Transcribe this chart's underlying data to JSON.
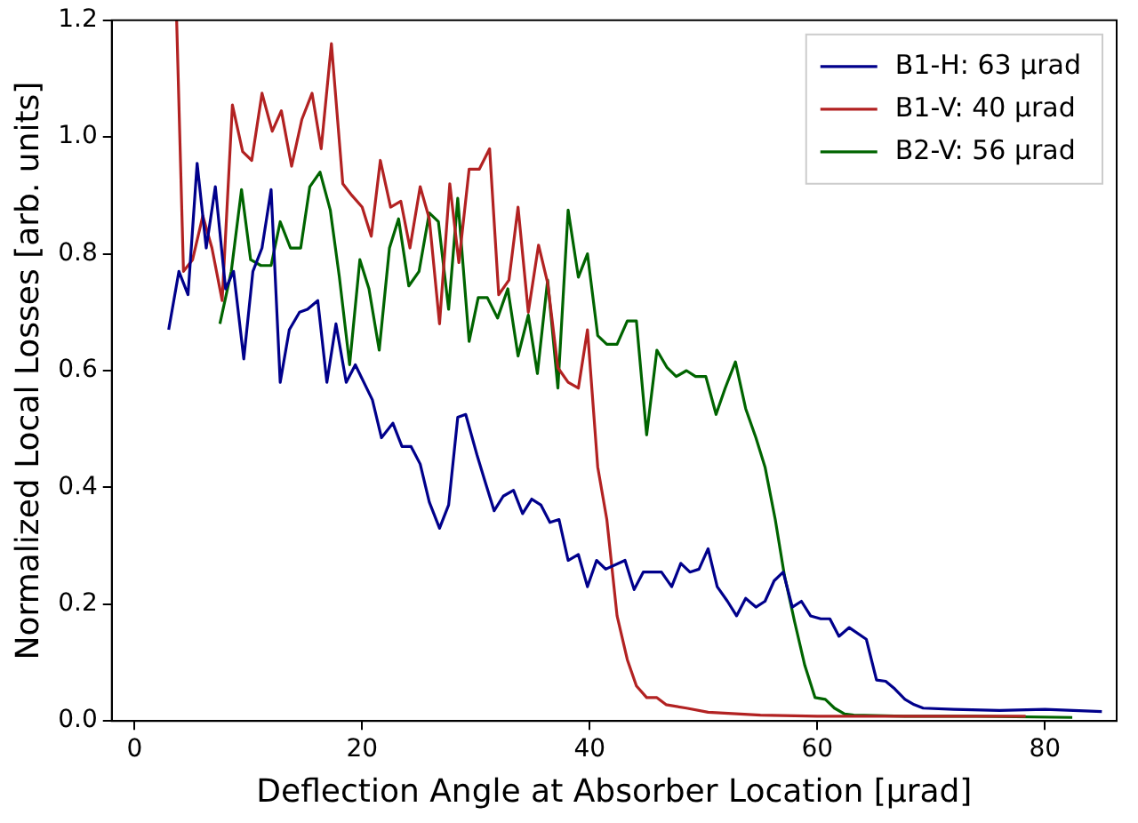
{
  "chart_data": {
    "type": "line",
    "xlabel": "Deflection Angle at Absorber Location [μrad]",
    "ylabel": "Normalized Local Losses [arb. units]",
    "xlim": [
      -2,
      86.3
    ],
    "ylim": [
      0,
      1.2
    ],
    "xticks": [
      0,
      20,
      40,
      60,
      80
    ],
    "yticks": [
      {
        "value": 0,
        "label": "0.0"
      },
      {
        "value": 0.2,
        "label": "0.2"
      },
      {
        "value": 0.4,
        "label": "0.4"
      },
      {
        "value": 0.6,
        "label": "0.6"
      },
      {
        "value": 0.8,
        "label": "0.8"
      },
      {
        "value": 1,
        "label": "1.0"
      },
      {
        "value": 1.2,
        "label": "1.2"
      }
    ],
    "legend": "top right",
    "grid": false,
    "marker": "none",
    "line_style": "solid",
    "series": [
      {
        "name": "B1-H: 63 μrad",
        "color": "#00008b",
        "x": [
          3.0,
          3.9,
          4.7,
          5.5,
          6.3,
          7.1,
          8.0,
          8.7,
          9.6,
          10.4,
          11.2,
          12.0,
          12.8,
          13.6,
          14.5,
          15.2,
          16.1,
          16.9,
          17.7,
          18.6,
          19.4,
          20.9,
          21.7,
          22.7,
          23.5,
          24.3,
          25.1,
          25.9,
          26.8,
          27.6,
          28.4,
          29.1,
          30.1,
          30.8,
          31.6,
          32.4,
          33.3,
          34.1,
          34.9,
          35.7,
          36.5,
          37.3,
          38.1,
          39.0,
          39.8,
          40.6,
          41.4,
          43.1,
          43.9,
          44.7,
          46.3,
          47.2,
          48.0,
          48.8,
          49.6,
          50.4,
          51.2,
          52.1,
          52.9,
          53.7,
          54.6,
          55.4,
          56.2,
          57.0,
          57.8,
          58.6,
          59.4,
          60.3,
          61.1,
          61.9,
          62.8,
          64.3,
          65.2,
          66.0,
          66.8,
          67.7,
          68.5,
          69.3,
          72,
          76,
          80,
          85
        ],
        "values": [
          0.67,
          0.77,
          0.73,
          0.955,
          0.81,
          0.915,
          0.74,
          0.77,
          0.62,
          0.77,
          0.81,
          0.91,
          0.58,
          0.67,
          0.7,
          0.705,
          0.72,
          0.58,
          0.68,
          0.58,
          0.61,
          0.55,
          0.485,
          0.51,
          0.47,
          0.47,
          0.44,
          0.375,
          0.33,
          0.37,
          0.52,
          0.525,
          0.455,
          0.41,
          0.36,
          0.385,
          0.395,
          0.355,
          0.38,
          0.37,
          0.34,
          0.345,
          0.275,
          0.285,
          0.23,
          0.275,
          0.26,
          0.275,
          0.225,
          0.255,
          0.255,
          0.23,
          0.27,
          0.255,
          0.26,
          0.295,
          0.23,
          0.205,
          0.18,
          0.21,
          0.195,
          0.205,
          0.24,
          0.255,
          0.195,
          0.205,
          0.18,
          0.175,
          0.175,
          0.145,
          0.16,
          0.14,
          0.07,
          0.068,
          0.055,
          0.037,
          0.028,
          0.022,
          0.02,
          0.018,
          0.02,
          0.016
        ]
      },
      {
        "name": "B1-V: 40 μrad",
        "color": "#b22222",
        "x": [
          3.7,
          4.3,
          5.1,
          6.0,
          6.8,
          7.7,
          8.6,
          9.5,
          10.3,
          11.2,
          12.1,
          12.9,
          13.8,
          14.7,
          15.6,
          16.4,
          17.3,
          18.3,
          19.1,
          20.0,
          20.8,
          21.6,
          22.5,
          23.4,
          24.2,
          25.1,
          25.9,
          26.8,
          27.7,
          28.5,
          29.4,
          30.3,
          31.2,
          32.0,
          32.9,
          33.7,
          34.6,
          35.5,
          36.3,
          37.2,
          38.1,
          39.0,
          39.8,
          40.7,
          41.5,
          42.4,
          43.3,
          44.1,
          45.0,
          45.9,
          46.7,
          48.5,
          50.4,
          55,
          60,
          65,
          70,
          78.3
        ],
        "values": [
          1.2,
          0.77,
          0.79,
          0.865,
          0.81,
          0.72,
          1.055,
          0.975,
          0.96,
          1.075,
          1.01,
          1.045,
          0.95,
          1.03,
          1.075,
          0.98,
          1.16,
          0.92,
          0.9,
          0.88,
          0.83,
          0.96,
          0.88,
          0.89,
          0.81,
          0.915,
          0.86,
          0.68,
          0.92,
          0.785,
          0.945,
          0.945,
          0.98,
          0.73,
          0.755,
          0.88,
          0.7,
          0.815,
          0.75,
          0.605,
          0.58,
          0.57,
          0.67,
          0.435,
          0.345,
          0.18,
          0.105,
          0.06,
          0.04,
          0.04,
          0.028,
          0.022,
          0.015,
          0.01,
          0.008,
          0.008,
          0.008,
          0.008
        ]
      },
      {
        "name": "B2-V: 56 μrad",
        "color": "#006400",
        "x": [
          7.5,
          8.5,
          9.4,
          10.2,
          11.1,
          12.0,
          12.8,
          13.7,
          14.6,
          15.4,
          16.3,
          17.2,
          18.0,
          18.9,
          19.8,
          20.6,
          21.5,
          22.4,
          23.2,
          24.1,
          25.0,
          25.9,
          26.7,
          27.6,
          28.4,
          29.4,
          30.2,
          31.0,
          31.9,
          32.8,
          33.7,
          34.6,
          35.4,
          36.3,
          37.2,
          38.1,
          39.0,
          39.8,
          40.7,
          41.5,
          42.4,
          43.3,
          44.1,
          45.0,
          45.9,
          46.8,
          47.6,
          48.5,
          49.3,
          50.2,
          51.1,
          51.9,
          52.8,
          53.7,
          54.6,
          55.4,
          56.3,
          57.1,
          58.0,
          58.9,
          59.8,
          60.7,
          61.5,
          62.4,
          63.2,
          68,
          74,
          82.4
        ],
        "values": [
          0.68,
          0.77,
          0.91,
          0.79,
          0.78,
          0.78,
          0.855,
          0.81,
          0.81,
          0.915,
          0.94,
          0.875,
          0.76,
          0.61,
          0.79,
          0.74,
          0.635,
          0.81,
          0.86,
          0.745,
          0.77,
          0.87,
          0.855,
          0.705,
          0.895,
          0.65,
          0.725,
          0.725,
          0.69,
          0.74,
          0.625,
          0.695,
          0.595,
          0.755,
          0.57,
          0.875,
          0.76,
          0.8,
          0.66,
          0.645,
          0.645,
          0.685,
          0.685,
          0.49,
          0.635,
          0.605,
          0.59,
          0.6,
          0.59,
          0.59,
          0.525,
          0.57,
          0.615,
          0.535,
          0.485,
          0.435,
          0.345,
          0.25,
          0.17,
          0.095,
          0.04,
          0.037,
          0.022,
          0.012,
          0.01,
          0.008,
          0.008,
          0.006
        ]
      }
    ]
  }
}
